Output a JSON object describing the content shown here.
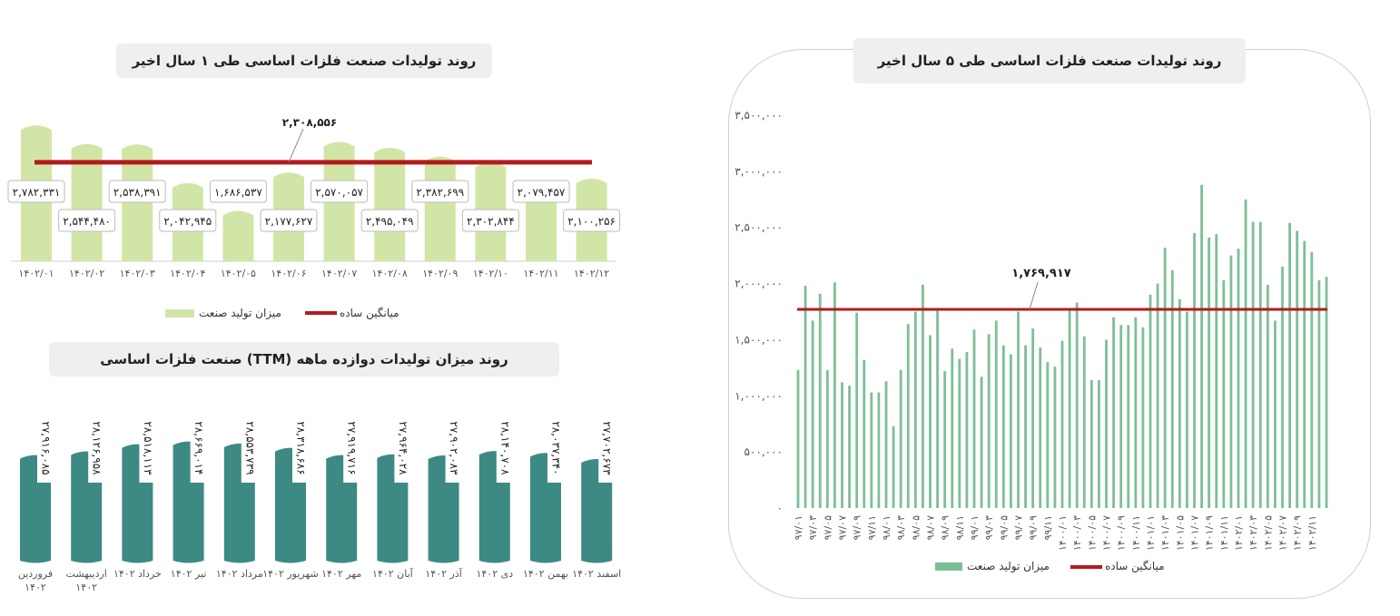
{
  "colors": {
    "avg_line": "#b31b1b",
    "light_green": "#d1e6a6",
    "medium_green": "#7dbf95",
    "teal": "#3d8a84",
    "axis_text": "#555555"
  },
  "chart_data": [
    {
      "id": "chart1",
      "type": "bar",
      "title": "روند تولیدات صنعت فلزات اساسی طی ۱ سال اخیر",
      "categories": [
        "۱۴۰۲/۰۱",
        "۱۴۰۲/۰۲",
        "۱۴۰۲/۰۳",
        "۱۴۰۲/۰۴",
        "۱۴۰۲/۰۵",
        "۱۴۰۲/۰۶",
        "۱۴۰۲/۰۷",
        "۱۴۰۲/۰۸",
        "۱۴۰۲/۰۹",
        "۱۴۰۲/۱۰",
        "۱۴۰۲/۱۱",
        "۱۴۰۲/۱۲"
      ],
      "values": [
        2782331,
        2544480,
        2538391,
        2042945,
        1686537,
        2177627,
        2570057,
        2495049,
        2382699,
        2302844,
        2079457,
        2100256
      ],
      "value_labels": [
        "۲,۷۸۲,۳۳۱",
        "۲,۵۴۴,۴۸۰",
        "۲,۵۳۸,۳۹۱",
        "۲,۰۴۲,۹۴۵",
        "۱,۶۸۶,۵۳۷",
        "۲,۱۷۷,۶۲۷",
        "۲,۵۷۰,۰۵۷",
        "۲,۴۹۵,۰۴۹",
        "۲,۳۸۲,۶۹۹",
        "۲,۳۰۲,۸۴۴",
        "۲,۰۷۹,۴۵۷",
        "۲,۱۰۰,۲۵۶"
      ],
      "average": 2308556,
      "average_label": "۲,۳۰۸,۵۵۶",
      "legend": [
        "میزان تولید صنعت",
        "میانگین ساده"
      ],
      "legend_position": "bottom",
      "grid": false
    },
    {
      "id": "chart2",
      "type": "bar",
      "title": "روند میزان تولیدات دوازده ماهه (TTM) صنعت فلزات اساسی",
      "categories": [
        "فروردین ۱۴۰۲",
        "اردیبهشت ۱۴۰۲",
        "خرداد ۱۴۰۲",
        "تیر ۱۴۰۲",
        "مرداد ۱۴۰۲",
        "شهریور ۱۴۰۲",
        "مهر ۱۴۰۲",
        "آبان ۱۴۰۲",
        "آذر ۱۴۰۲",
        "دی ۱۴۰۲",
        "بهمن ۱۴۰۲",
        "اسفند ۱۴۰۲"
      ],
      "values": [
        27916085,
        28126958,
        28518113,
        28669014,
        28553739,
        28318686,
        27919716,
        27964028,
        27902083,
        28140708,
        28037340,
        27702673
      ],
      "value_labels": [
        "۲۷,۹۱۶,۰۸۵",
        "۲۸,۱۲۶,۹۵۸",
        "۲۸,۵۱۸,۱۱۳",
        "۲۸,۶۶۹,۰۱۴",
        "۲۸,۵۵۳,۷۳۹",
        "۲۸,۳۱۸,۶۸۶",
        "۲۷,۹۱۹,۷۱۶",
        "۲۷,۹۶۴,۰۲۸",
        "۲۷,۹۰۲,۰۸۳",
        "۲۸,۱۴۰,۷۰۸",
        "۲۸,۰۳۷,۳۴۰",
        "۲۷,۷۰۲,۶۷۳"
      ],
      "grid": false
    },
    {
      "id": "chart3",
      "type": "bar",
      "title": "روند تولیدات صنعت فلزات اساسی طی ۵ سال اخیر",
      "x_tick_labels": [
        "۹۷/۰۱",
        "۹۷/۰۳",
        "۹۷/۰۵",
        "۹۷/۰۷",
        "۹۷/۰۹",
        "۹۷/۱۱",
        "۹۸/۰۱",
        "۹۸/۰۳",
        "۹۸/۰۵",
        "۹۸/۰۷",
        "۹۸/۰۹",
        "۹۸/۱۱",
        "۹۹/۰۱",
        "۹۹/۰۳",
        "۹۹/۰۵",
        "۹۹/۰۷",
        "۹۹/۰۹",
        "۹۹/۱۱",
        "۱۴۰۰/۰۱",
        "۱۴۰۰/۰۳",
        "۱۴۰۰/۰۵",
        "۱۴۰۰/۰۷",
        "۱۴۰۰/۰۹",
        "۱۴۰۰/۱۱",
        "۱۴۰۱/۰۱",
        "۱۴۰۱/۰۳",
        "۱۴۰۱/۰۵",
        "۱۴۰۱/۰۷",
        "۱۴۰۱/۰۹",
        "۱۴۰۱/۱۱",
        "۱۴۰۲/۰۱",
        "۱۴۰۲/۰۳",
        "۱۴۰۲/۰۵",
        "۱۴۰۲/۰۷",
        "۱۴۰۲/۰۹",
        "۱۴۰۲/۱۱"
      ],
      "values": [
        1230000,
        1980000,
        1670000,
        1910000,
        1230000,
        2010000,
        1120000,
        1090000,
        1740000,
        1320000,
        1030000,
        1030000,
        1130000,
        730000,
        1230000,
        1640000,
        1750000,
        1990000,
        1540000,
        1760000,
        1220000,
        1420000,
        1330000,
        1390000,
        1590000,
        1170000,
        1550000,
        1670000,
        1450000,
        1370000,
        1750000,
        1450000,
        1600000,
        1430000,
        1300000,
        1260000,
        1490000,
        1760000,
        1830000,
        1530000,
        1140000,
        1140000,
        1500000,
        1700000,
        1630000,
        1630000,
        1700000,
        1610000,
        1900000,
        2000000,
        2320000,
        2120000,
        1860000,
        1750000,
        2450000,
        2880000,
        2410000,
        2440000,
        2030000,
        2250000,
        2310000,
        2750000,
        2550000,
        2550000,
        1990000,
        1670000,
        2150000,
        2540000,
        2470000,
        2380000,
        2280000,
        2030000,
        2060000
      ],
      "average": 1769917,
      "average_label": "۱,۷۶۹,۹۱۷",
      "y_ticks": [
        0,
        500000,
        1000000,
        1500000,
        2000000,
        2500000,
        3000000,
        3500000
      ],
      "y_tick_labels": [
        "۰",
        "۵۰۰,۰۰۰",
        "۱,۰۰۰,۰۰۰",
        "۱,۵۰۰,۰۰۰",
        "۲,۰۰۰,۰۰۰",
        "۲,۵۰۰,۰۰۰",
        "۳,۰۰۰,۰۰۰",
        "۳,۵۰۰,۰۰۰"
      ],
      "ylim": [
        0,
        3500000
      ],
      "legend": [
        "میزان تولید صنعت",
        "میانگین ساده"
      ],
      "legend_position": "bottom",
      "grid": false
    }
  ]
}
